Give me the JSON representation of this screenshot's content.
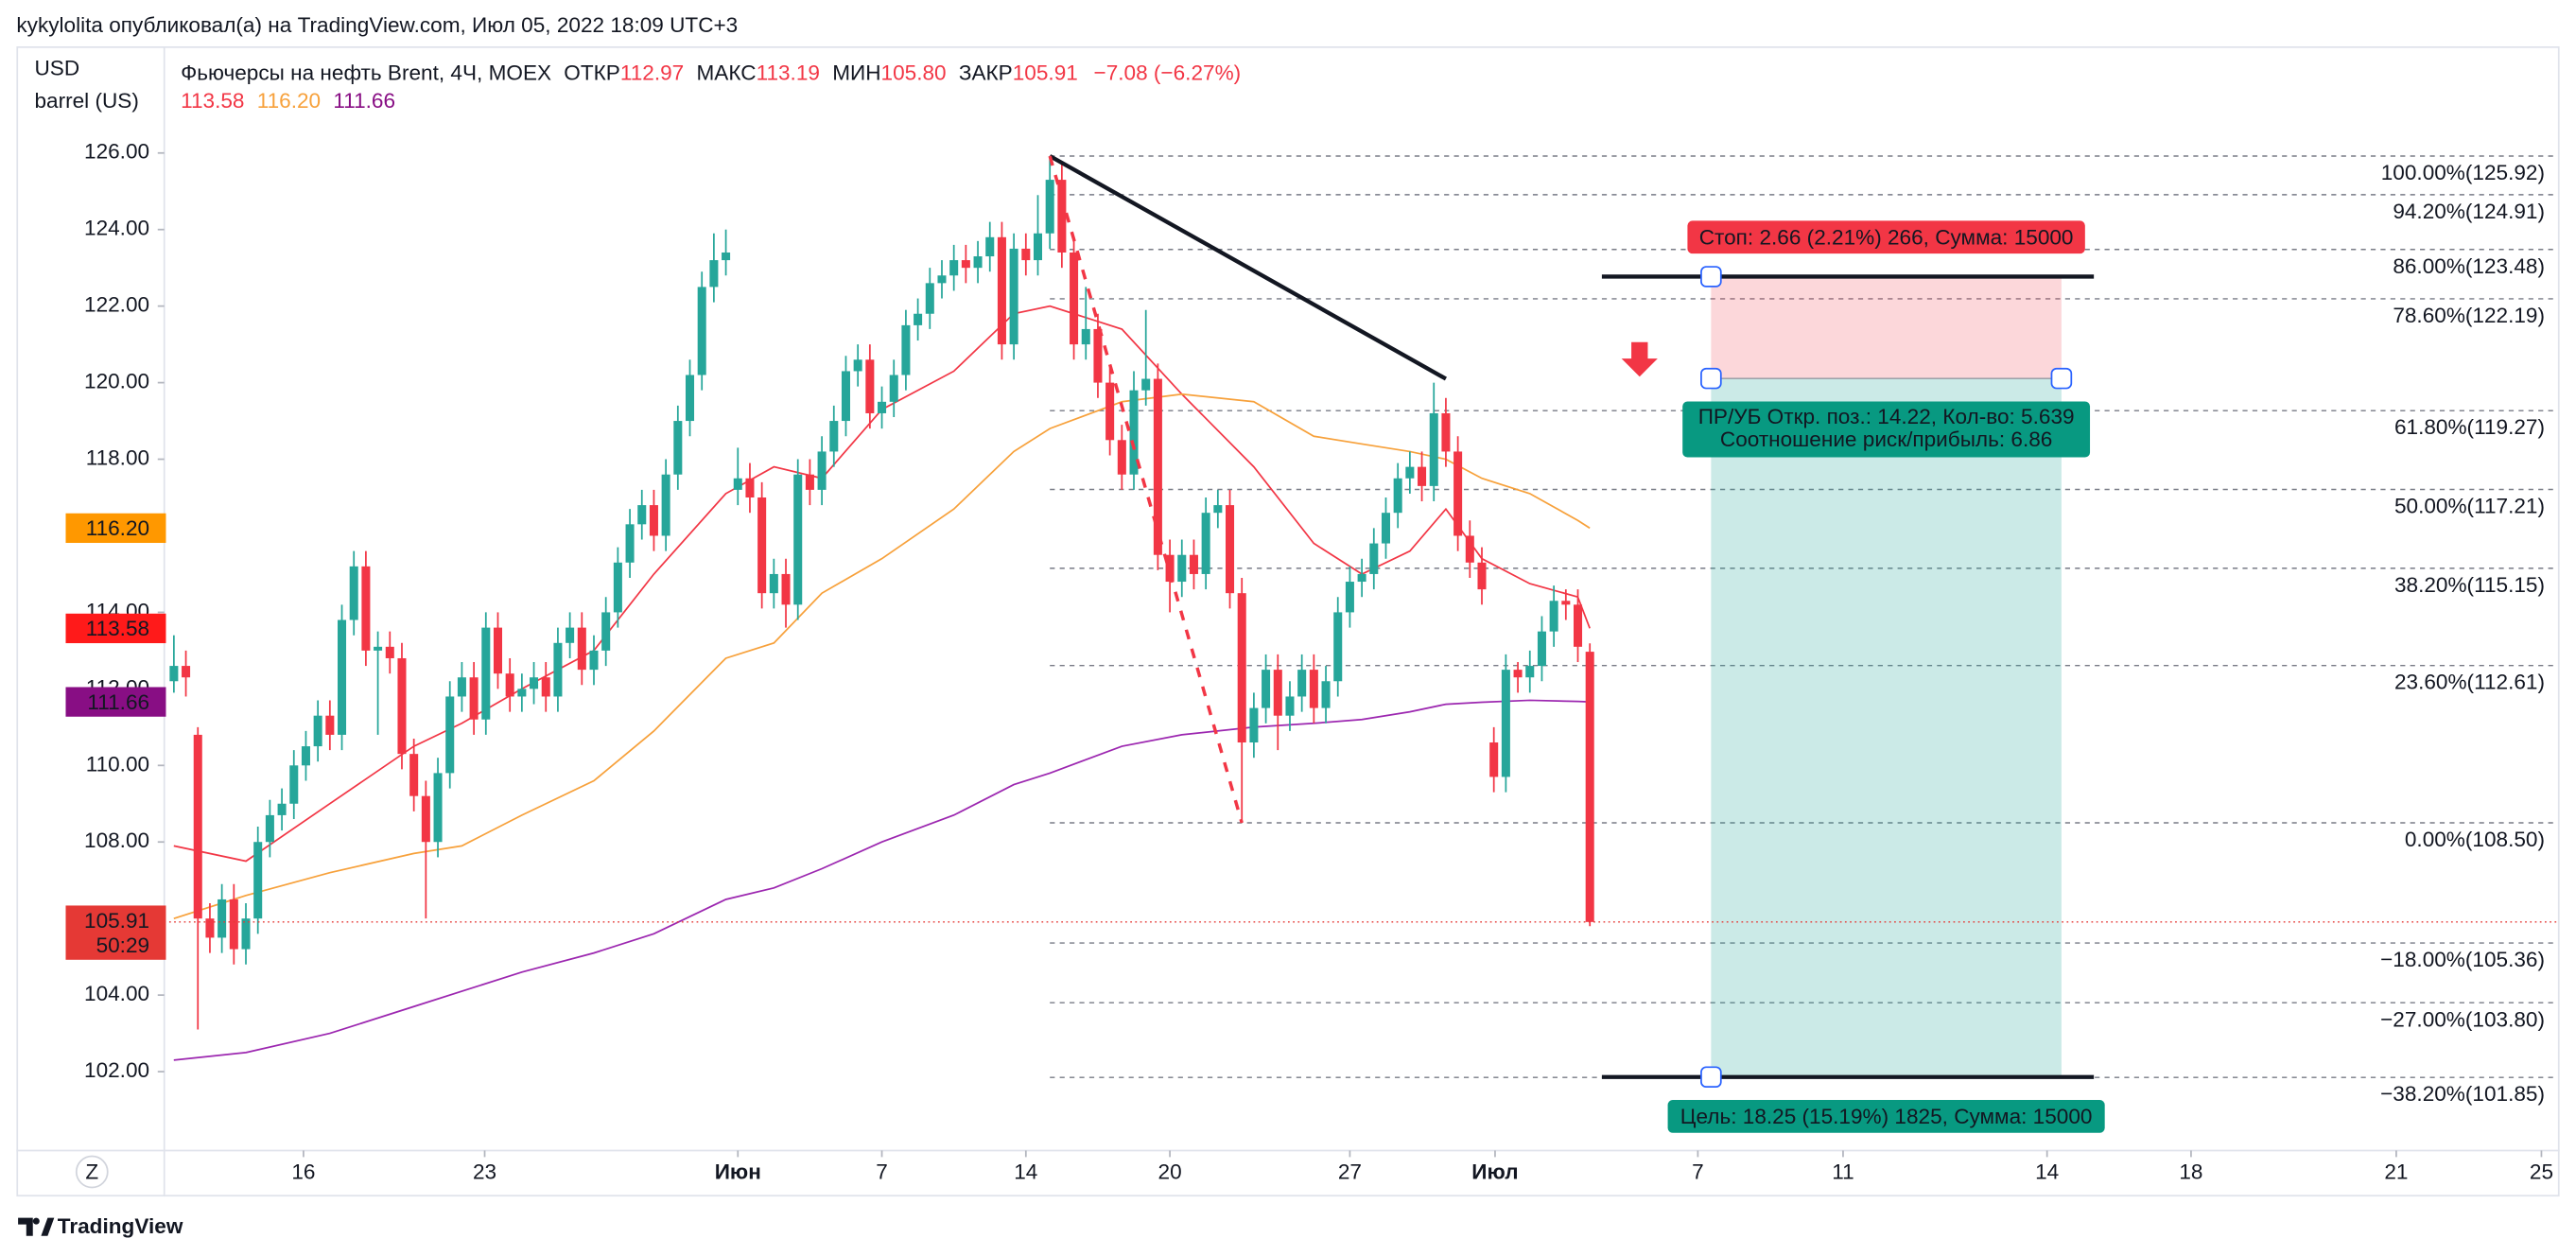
{
  "chart_data": {
    "type": "candlestick",
    "attribution": "kykylolita опубликовал(а) на TradingView.com, Июл 05, 2022 18:09 UTC+3",
    "currency": "USD",
    "unit": "barrel (US)",
    "symbol": "Фьючерсы на нефть Brent, 4Ч, MOEX",
    "ohlc_labels": [
      "ОТКР",
      "МАКС",
      "МИН",
      "ЗАКР"
    ],
    "last_labels": [
      "112.97",
      "113.19",
      "105.80",
      "105.91"
    ],
    "change_label": "−7.08 (−6.27%)",
    "up_color": "#26a69a",
    "down_color": "#f23645",
    "candles": [
      [
        112.2,
        113.4,
        111.9,
        112.6
      ],
      [
        112.6,
        113.0,
        111.8,
        112.3
      ],
      [
        110.8,
        111.0,
        103.1,
        106.0
      ],
      [
        106.0,
        106.4,
        105.1,
        105.5
      ],
      [
        105.5,
        106.9,
        105.1,
        106.5
      ],
      [
        106.5,
        106.9,
        104.8,
        105.2
      ],
      [
        105.2,
        106.4,
        104.8,
        106.0
      ],
      [
        106.0,
        108.4,
        105.6,
        108.0
      ],
      [
        108.0,
        109.1,
        107.6,
        108.7
      ],
      [
        108.7,
        109.4,
        108.3,
        109.0
      ],
      [
        109.0,
        110.4,
        108.6,
        110.0
      ],
      [
        110.0,
        110.9,
        109.6,
        110.5
      ],
      [
        110.5,
        111.7,
        110.1,
        111.3
      ],
      [
        111.3,
        111.7,
        110.4,
        110.8
      ],
      [
        110.8,
        114.2,
        110.4,
        113.8
      ],
      [
        113.8,
        115.6,
        113.4,
        115.2
      ],
      [
        115.2,
        115.6,
        112.6,
        113.0
      ],
      [
        113.0,
        113.5,
        110.8,
        113.1
      ],
      [
        113.1,
        113.5,
        112.4,
        112.8
      ],
      [
        112.8,
        113.2,
        109.9,
        110.3
      ],
      [
        110.3,
        110.7,
        108.8,
        109.2
      ],
      [
        109.2,
        109.6,
        106.0,
        108.0
      ],
      [
        108.0,
        110.2,
        107.6,
        109.8
      ],
      [
        109.8,
        112.2,
        109.4,
        111.8
      ],
      [
        111.8,
        112.7,
        111.4,
        112.3
      ],
      [
        112.3,
        112.7,
        110.8,
        111.2
      ],
      [
        111.2,
        114.0,
        110.8,
        113.6
      ],
      [
        113.6,
        114.0,
        112.0,
        112.4
      ],
      [
        112.4,
        112.8,
        111.4,
        111.8
      ],
      [
        111.8,
        112.4,
        111.4,
        112.0
      ],
      [
        112.0,
        112.7,
        111.6,
        112.3
      ],
      [
        112.3,
        112.7,
        111.4,
        111.8
      ],
      [
        111.8,
        113.6,
        111.4,
        113.2
      ],
      [
        113.2,
        114.0,
        112.8,
        113.6
      ],
      [
        113.6,
        114.0,
        112.1,
        112.5
      ],
      [
        112.5,
        113.4,
        112.1,
        113.0
      ],
      [
        113.0,
        114.4,
        112.6,
        114.0
      ],
      [
        114.0,
        115.7,
        113.6,
        115.3
      ],
      [
        115.3,
        116.7,
        114.9,
        116.3
      ],
      [
        116.3,
        117.2,
        115.9,
        116.8
      ],
      [
        116.8,
        117.2,
        115.6,
        116.0
      ],
      [
        116.0,
        118.0,
        115.6,
        117.6
      ],
      [
        117.6,
        119.4,
        117.2,
        119.0
      ],
      [
        119.0,
        120.6,
        118.6,
        120.2
      ],
      [
        120.2,
        122.9,
        119.8,
        122.5
      ],
      [
        122.5,
        123.9,
        122.1,
        123.2
      ],
      [
        123.2,
        124.0,
        122.8,
        123.4
      ],
      [
        117.2,
        118.3,
        116.8,
        117.5
      ],
      [
        117.5,
        117.9,
        116.6,
        117.0
      ],
      [
        117.0,
        117.4,
        114.1,
        114.5
      ],
      [
        114.5,
        115.4,
        114.1,
        115.0
      ],
      [
        115.0,
        115.4,
        113.6,
        114.2
      ],
      [
        114.2,
        118.0,
        113.8,
        117.6
      ],
      [
        117.6,
        118.0,
        116.8,
        117.2
      ],
      [
        117.2,
        118.6,
        116.8,
        118.2
      ],
      [
        118.2,
        119.4,
        117.8,
        119.0
      ],
      [
        119.0,
        120.7,
        118.6,
        120.3
      ],
      [
        120.3,
        121.0,
        119.9,
        120.6
      ],
      [
        120.6,
        121.0,
        118.8,
        119.2
      ],
      [
        119.2,
        119.9,
        118.8,
        119.5
      ],
      [
        119.5,
        120.6,
        119.1,
        120.2
      ],
      [
        120.2,
        121.9,
        119.8,
        121.5
      ],
      [
        121.5,
        122.2,
        121.1,
        121.8
      ],
      [
        121.8,
        123.0,
        121.4,
        122.6
      ],
      [
        122.6,
        123.2,
        122.2,
        122.8
      ],
      [
        122.8,
        123.6,
        122.4,
        123.2
      ],
      [
        123.2,
        123.6,
        122.6,
        123.0
      ],
      [
        123.0,
        123.7,
        122.6,
        123.3
      ],
      [
        123.3,
        124.2,
        122.9,
        123.8
      ],
      [
        123.8,
        124.2,
        120.6,
        121.0
      ],
      [
        121.0,
        123.9,
        120.6,
        123.5
      ],
      [
        123.5,
        123.9,
        122.8,
        123.2
      ],
      [
        123.2,
        124.9,
        122.8,
        123.9
      ],
      [
        123.9,
        125.92,
        123.5,
        125.3
      ],
      [
        125.3,
        125.7,
        123.0,
        123.4
      ],
      [
        123.4,
        123.8,
        120.6,
        121.0
      ],
      [
        121.0,
        122.5,
        120.6,
        121.4
      ],
      [
        121.4,
        121.8,
        119.6,
        120.0
      ],
      [
        120.0,
        120.4,
        118.1,
        118.5
      ],
      [
        118.5,
        118.9,
        117.2,
        117.6
      ],
      [
        117.6,
        120.3,
        117.2,
        119.8
      ],
      [
        119.8,
        121.9,
        119.4,
        120.1
      ],
      [
        120.1,
        120.5,
        115.1,
        115.5
      ],
      [
        115.5,
        115.9,
        114.0,
        114.8
      ],
      [
        114.8,
        115.9,
        114.4,
        115.5
      ],
      [
        115.5,
        115.9,
        114.6,
        115.0
      ],
      [
        115.0,
        117.0,
        114.6,
        116.6
      ],
      [
        116.6,
        117.2,
        116.2,
        116.8
      ],
      [
        116.8,
        117.2,
        114.1,
        114.5
      ],
      [
        114.5,
        114.9,
        108.5,
        110.6
      ],
      [
        110.6,
        111.9,
        110.2,
        111.5
      ],
      [
        111.5,
        112.9,
        111.1,
        112.5
      ],
      [
        112.5,
        112.9,
        110.4,
        111.3
      ],
      [
        111.3,
        112.2,
        110.9,
        111.8
      ],
      [
        111.8,
        112.9,
        111.4,
        112.5
      ],
      [
        112.5,
        112.9,
        111.1,
        111.5
      ],
      [
        111.5,
        112.6,
        111.1,
        112.2
      ],
      [
        112.2,
        114.4,
        111.8,
        114.0
      ],
      [
        114.0,
        115.2,
        113.6,
        114.8
      ],
      [
        114.8,
        115.4,
        114.4,
        115.0
      ],
      [
        115.0,
        116.2,
        114.6,
        115.8
      ],
      [
        115.8,
        117.0,
        115.4,
        116.6
      ],
      [
        116.6,
        117.9,
        116.2,
        117.5
      ],
      [
        117.5,
        118.2,
        117.1,
        117.8
      ],
      [
        117.8,
        118.2,
        116.9,
        117.3
      ],
      [
        117.3,
        120.0,
        116.9,
        119.2
      ],
      [
        119.2,
        119.6,
        117.8,
        118.2
      ],
      [
        118.2,
        118.6,
        115.6,
        116.0
      ],
      [
        116.0,
        116.4,
        114.9,
        115.3
      ],
      [
        115.3,
        115.7,
        114.2,
        114.6
      ],
      [
        110.6,
        111.0,
        109.3,
        109.7
      ],
      [
        109.7,
        112.9,
        109.3,
        112.5
      ],
      [
        112.5,
        112.7,
        111.9,
        112.3
      ],
      [
        112.3,
        113.0,
        111.9,
        112.6
      ],
      [
        112.6,
        113.9,
        112.2,
        113.5
      ],
      [
        113.5,
        114.7,
        113.1,
        114.3
      ],
      [
        114.3,
        114.6,
        113.8,
        114.2
      ],
      [
        114.2,
        114.6,
        112.7,
        113.1
      ],
      [
        112.97,
        113.19,
        105.8,
        105.91
      ]
    ],
    "indicator_x": [
      0,
      6,
      13,
      20,
      24,
      29,
      35,
      40,
      46,
      50,
      54,
      59,
      65,
      70,
      73,
      79,
      84,
      90,
      95,
      99,
      103,
      106,
      109,
      113,
      117,
      118
    ],
    "indicators": [
      {
        "color": "#f23645",
        "last_label": "113.58",
        "values": [
          107.9,
          107.5,
          109,
          110.5,
          111.1,
          112,
          113,
          115,
          117.1,
          117.8,
          117.5,
          119.3,
          120.3,
          121.8,
          122,
          121.4,
          119.7,
          117.8,
          115.8,
          115,
          115.6,
          116.7,
          115.4,
          114.75,
          114.4,
          113.58
        ]
      },
      {
        "color": "#f7a13b",
        "last_label": "116.20",
        "values": [
          106,
          106.6,
          107.2,
          107.7,
          107.9,
          108.7,
          109.6,
          110.9,
          112.8,
          113.2,
          114.5,
          115.4,
          116.7,
          118.2,
          118.8,
          119.5,
          119.7,
          119.5,
          118.6,
          118.4,
          118.2,
          118,
          117.5,
          117.1,
          116.4,
          116.2
        ]
      },
      {
        "color": "#9c27b0",
        "last_label": "111.66",
        "values": [
          102.3,
          102.5,
          103,
          103.7,
          104.1,
          104.6,
          105.1,
          105.6,
          106.5,
          106.8,
          107.3,
          108,
          108.7,
          109.5,
          109.8,
          110.5,
          110.8,
          111,
          111.1,
          111.2,
          111.4,
          111.6,
          111.65,
          111.7,
          111.67,
          111.66
        ]
      }
    ],
    "badge_colors": [
      "#ff1a1a",
      "#ff9800",
      "#880e84"
    ],
    "price_color": "#e53935",
    "countdown": "50:29",
    "xlim": [
      -0.8,
      198.4
    ],
    "xticks": [
      {
        "value": 10.8,
        "label": "16"
      },
      {
        "value": 25.9,
        "label": "23"
      },
      {
        "value": 47.0,
        "label": "Июн"
      },
      {
        "value": 59.0,
        "label": "7"
      },
      {
        "value": 71.0,
        "label": "14"
      },
      {
        "value": 83.0,
        "label": "20"
      },
      {
        "value": 98.0,
        "label": "27"
      },
      {
        "value": 110.1,
        "label": "Июл"
      },
      {
        "value": 127.0,
        "label": "7"
      },
      {
        "value": 139.1,
        "label": "11"
      },
      {
        "value": 156.1,
        "label": "14"
      },
      {
        "value": 168.1,
        "label": "18"
      },
      {
        "value": 185.2,
        "label": "21"
      },
      {
        "value": 197.3,
        "label": "25"
      }
    ],
    "ylim": [
      100,
      128.7
    ],
    "yticks": [
      {
        "value": 102,
        "label": "102.00"
      },
      {
        "value": 104,
        "label": "104.00"
      },
      {
        "value": 106,
        "label": "106.00"
      },
      {
        "value": 108,
        "label": "108.00"
      },
      {
        "value": 110,
        "label": "110.00"
      },
      {
        "value": 112,
        "label": "112.00"
      },
      {
        "value": 114,
        "label": "114.00"
      },
      {
        "value": 116,
        "label": "116.00"
      },
      {
        "value": 118,
        "label": "118.00"
      },
      {
        "value": 120,
        "label": "120.00"
      },
      {
        "value": 122,
        "label": "122.00"
      },
      {
        "value": 124,
        "label": "124.00"
      },
      {
        "value": 126,
        "label": "126.00"
      }
    ],
    "fib_start": 73,
    "fib_levels": [
      {
        "value": 125.92,
        "label": "100.00%(125.92)"
      },
      {
        "value": 124.91,
        "label": "94.20%(124.91)"
      },
      {
        "value": 123.48,
        "label": "86.00%(123.48)"
      },
      {
        "value": 122.19,
        "label": "78.60%(122.19)"
      },
      {
        "value": 119.27,
        "label": "61.80%(119.27)"
      },
      {
        "value": 117.21,
        "label": "50.00%(117.21)"
      },
      {
        "value": 115.15,
        "label": "38.20%(115.15)"
      },
      {
        "value": 112.61,
        "label": "23.60%(112.61)"
      },
      {
        "value": 108.5,
        "label": "0.00%(108.50)"
      },
      {
        "value": 105.36,
        "label": "−18.00%(105.36)"
      },
      {
        "value": 103.8,
        "label": "−27.00%(103.80)"
      },
      {
        "value": 101.85,
        "label": "−38.20%(101.85)"
      }
    ],
    "trend_line": [
      [
        73,
        125.92
      ],
      [
        106,
        120.1
      ]
    ],
    "dashed_line": [
      [
        73,
        125.92
      ],
      [
        89,
        108.5
      ]
    ],
    "position": {
      "entry": 120.11,
      "stop": 122.77,
      "target": 101.86,
      "start": 128.1,
      "end": 157.3,
      "line_start": 119,
      "line_end": 160,
      "stop_label": "Стоп: 2.66 (2.21%) 266, Сумма: 15000",
      "info_lines": [
        "ПР/УБ Откр. поз.: 14.22, Кол-во: 5.639",
        "Соотношение риск/прибыль: 6.86"
      ],
      "target_label": "Цель: 18.25 (15.19%) 1825, Сумма: 15000"
    },
    "z_button": "Z",
    "footer": "TradingView"
  }
}
